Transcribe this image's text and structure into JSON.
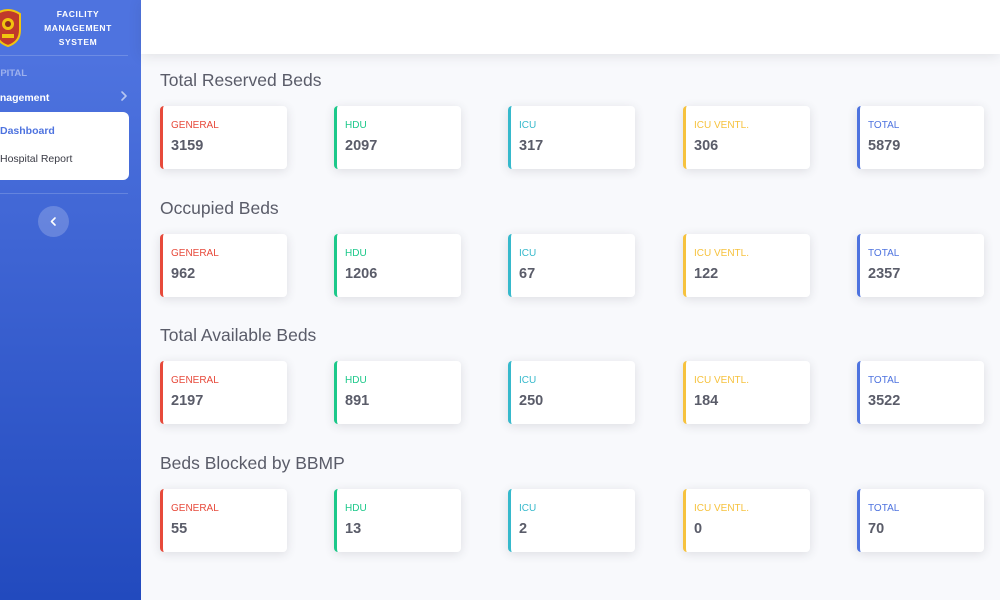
{
  "sidebar": {
    "brand_line1": "FACILITY",
    "brand_line2": "MANAGEMENT",
    "brand_line3": "SYSTEM",
    "heading": "SPITAL",
    "nav_label": "anagement",
    "collapse_items": [
      "Dashboard",
      "Hospital Report"
    ]
  },
  "sections": [
    {
      "title": "Total Reserved Beds",
      "cards": [
        {
          "label": "GENERAL",
          "value": "3159"
        },
        {
          "label": "HDU",
          "value": "2097"
        },
        {
          "label": "ICU",
          "value": "317"
        },
        {
          "label": "ICU VENTL.",
          "value": "306"
        },
        {
          "label": "TOTAL",
          "value": "5879"
        }
      ]
    },
    {
      "title": "Occupied Beds",
      "cards": [
        {
          "label": "GENERAL",
          "value": "962"
        },
        {
          "label": "HDU",
          "value": "1206"
        },
        {
          "label": "ICU",
          "value": "67"
        },
        {
          "label": "ICU VENTL.",
          "value": "122"
        },
        {
          "label": "TOTAL",
          "value": "2357"
        }
      ]
    },
    {
      "title": "Total Available Beds",
      "cards": [
        {
          "label": "GENERAL",
          "value": "2197"
        },
        {
          "label": "HDU",
          "value": "891"
        },
        {
          "label": "ICU",
          "value": "250"
        },
        {
          "label": "ICU VENTL.",
          "value": "184"
        },
        {
          "label": "TOTAL",
          "value": "3522"
        }
      ]
    },
    {
      "title": "Beds Blocked by BBMP",
      "cards": [
        {
          "label": "GENERAL",
          "value": "55"
        },
        {
          "label": "HDU",
          "value": "13"
        },
        {
          "label": "ICU",
          "value": "2"
        },
        {
          "label": "ICU VENTL.",
          "value": "0"
        },
        {
          "label": "TOTAL",
          "value": "70"
        }
      ]
    }
  ],
  "colors": {
    "general": "#e74a3b",
    "hdu": "#1cc88a",
    "icu": "#36b9cc",
    "icu_ventl": "#f6c23e",
    "total": "#4e73df",
    "sidebar_gradient_start": "#4e73df",
    "sidebar_gradient_end": "#224abe"
  },
  "icons": {
    "brand_logo": "emblem-icon",
    "nav_chevron": "chevron-right-icon",
    "sidebar_toggle": "chevron-left-icon"
  }
}
